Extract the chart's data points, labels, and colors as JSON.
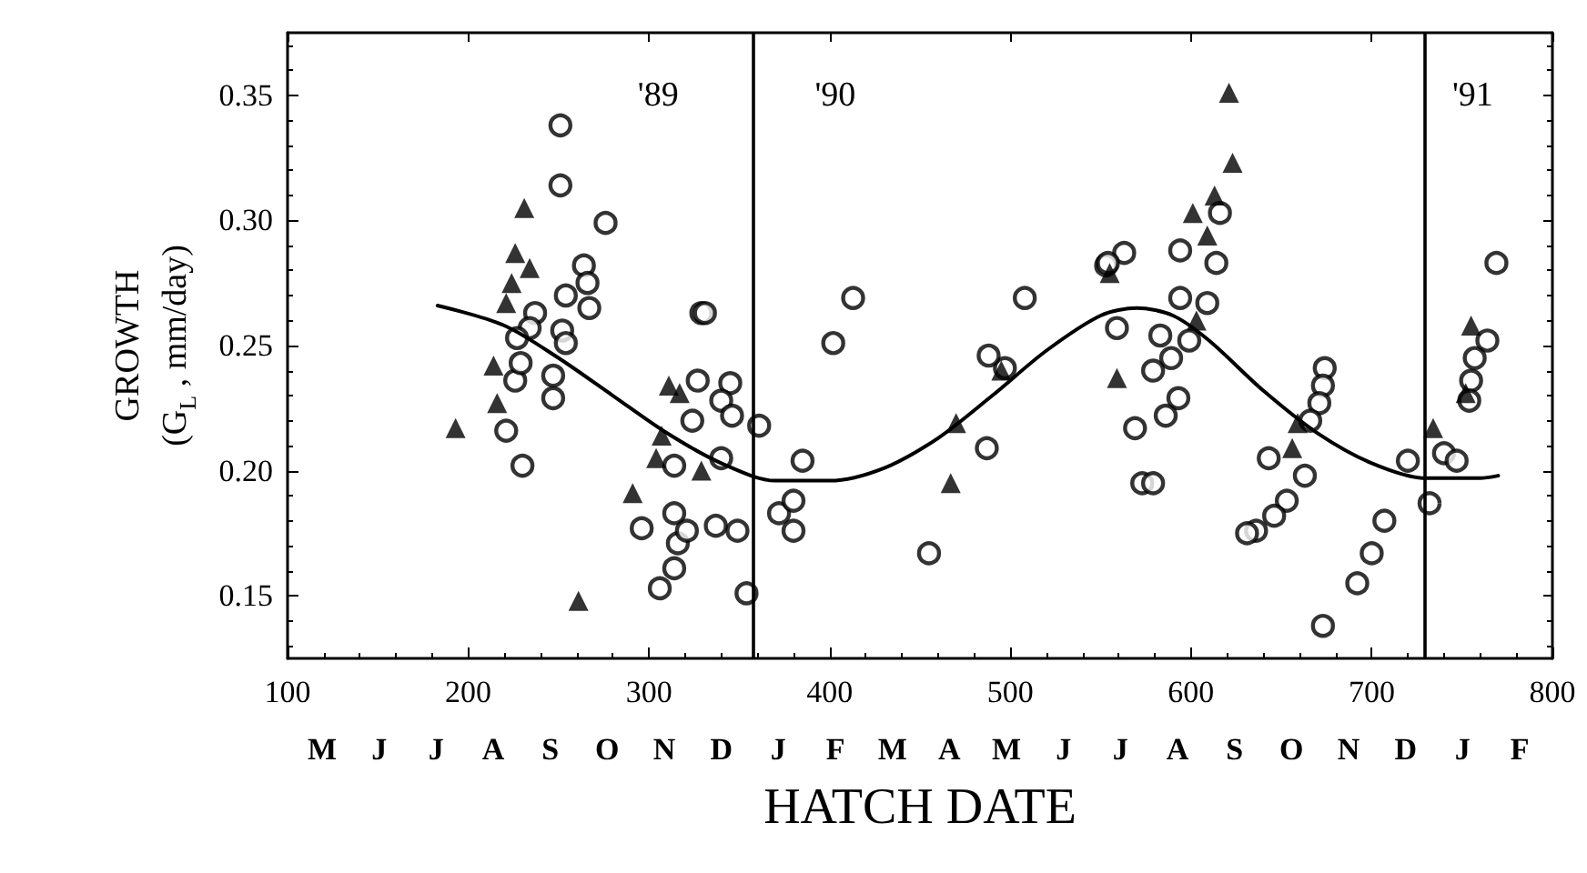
{
  "chart_data": {
    "type": "scatter",
    "xlabel": "HATCH DATE",
    "ylabel": "GROWTH\n(G$_{L}$ , mm/day)",
    "xlim": [
      100,
      800
    ],
    "xticks": [
      100,
      200,
      300,
      400,
      500,
      600,
      700,
      800
    ],
    "ylim": [
      0.125,
      0.375
    ],
    "yticks": [
      0.15,
      {
        "value": 0.2,
        "label": "0.20"
      },
      0.25,
      {
        "value": 0.3,
        "label": "0.30"
      },
      0.35
    ],
    "grid": false,
    "ref_lines": [
      {
        "axis": "x",
        "value": 358,
        "color": "#000000"
      },
      {
        "axis": "x",
        "value": 729,
        "color": "#000000"
      }
    ],
    "annotations": [
      "'89",
      "'90",
      "'91",
      "M J J A S O N D J F M A M J J A S O N D J F"
    ],
    "series": [
      {
        "marker": "circle",
        "color": "#000000",
        "x": [
          251,
          251,
          276,
          264,
          266,
          267,
          254,
          252,
          254,
          237,
          234,
          227,
          247,
          247,
          221,
          230,
          226,
          229,
          329,
          327,
          296,
          306,
          314,
          316,
          314,
          321,
          314,
          324,
          331,
          345,
          340,
          346,
          340,
          337,
          349,
          361,
          354,
          385,
          372,
          380,
          380,
          402,
          413,
          455,
          487,
          508,
          497,
          488,
          559,
          563,
          553,
          573,
          616,
          594,
          614,
          594,
          609,
          554,
          583,
          599,
          589,
          579,
          593,
          586,
          569,
          579,
          674,
          673,
          671,
          666,
          663,
          653,
          646,
          636,
          631,
          643,
          707,
          700,
          692,
          673,
          720,
          740,
          747,
          732,
          769,
          764,
          757,
          755,
          754
        ],
        "values": [
          0.338,
          0.314,
          0.299,
          0.282,
          0.275,
          0.265,
          0.27,
          0.256,
          0.251,
          0.263,
          0.257,
          0.253,
          0.238,
          0.229,
          0.216,
          0.202,
          0.236,
          0.243,
          0.263,
          0.236,
          0.177,
          0.153,
          0.183,
          0.171,
          0.161,
          0.176,
          0.202,
          0.22,
          0.263,
          0.235,
          0.228,
          0.222,
          0.205,
          0.178,
          0.176,
          0.218,
          0.151,
          0.204,
          0.183,
          0.188,
          0.176,
          0.251,
          0.269,
          0.167,
          0.209,
          0.269,
          0.241,
          0.246,
          0.257,
          0.287,
          0.282,
          0.195,
          0.303,
          0.288,
          0.283,
          0.269,
          0.267,
          0.283,
          0.254,
          0.252,
          0.245,
          0.24,
          0.229,
          0.222,
          0.217,
          0.195,
          0.241,
          0.234,
          0.227,
          0.22,
          0.198,
          0.188,
          0.182,
          0.176,
          0.175,
          0.205,
          0.18,
          0.167,
          0.155,
          0.138,
          0.204,
          0.207,
          0.204,
          0.187,
          0.283,
          0.252,
          0.245,
          0.236,
          0.228
        ]
      },
      {
        "marker": "triangle",
        "color": "#000000",
        "x": [
          193,
          231,
          226,
          234,
          224,
          221,
          214,
          216,
          261,
          291,
          307,
          311,
          304,
          317,
          470,
          467,
          329,
          559,
          555,
          495,
          621,
          623,
          613,
          601,
          734,
          755,
          752,
          609,
          656,
          659,
          603
        ],
        "values": [
          0.217,
          0.305,
          0.287,
          0.281,
          0.275,
          0.267,
          0.242,
          0.227,
          0.148,
          0.191,
          0.214,
          0.234,
          0.205,
          0.231,
          0.219,
          0.195,
          0.2,
          0.237,
          0.279,
          0.24,
          0.351,
          0.323,
          0.31,
          0.303,
          0.217,
          0.258,
          0.231,
          0.294,
          0.209,
          0.219,
          0.26
        ]
      },
      {
        "type": "line",
        "marker": "none",
        "line_style": "solid",
        "color": "#000000",
        "x": [
          183,
          220,
          250,
          280,
          310,
          340,
          370,
          400,
          430,
          460,
          490,
          520,
          550,
          570,
          590,
          610,
          640,
          670,
          700,
          730,
          760,
          770
        ],
        "values": [
          0.266,
          0.258,
          0.245,
          0.23,
          0.215,
          0.203,
          0.196,
          0.196,
          0.201,
          0.213,
          0.23,
          0.248,
          0.262,
          0.265,
          0.262,
          0.252,
          0.232,
          0.215,
          0.203,
          0.197,
          0.197,
          0.198
        ]
      }
    ]
  }
}
